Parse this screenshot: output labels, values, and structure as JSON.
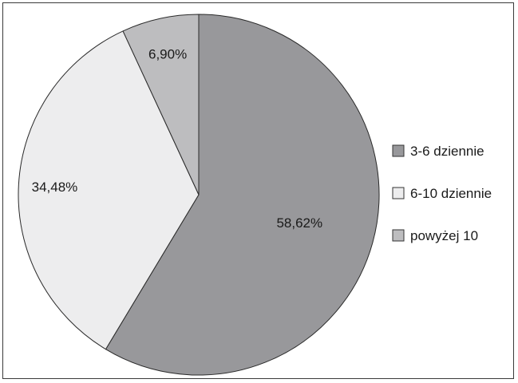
{
  "chart_data": {
    "type": "pie",
    "categories": [
      "3-6 dziennie",
      "6-10 dziennie",
      "powyżej 10"
    ],
    "values": [
      58.62,
      34.48,
      6.9
    ],
    "labels": [
      "58,62%",
      "34,48%",
      "6,90%"
    ],
    "colors": [
      "#98989b",
      "#ededee",
      "#bdbdbf"
    ],
    "start_angle": "12 o'clock",
    "direction": "clockwise",
    "legend_position": "right"
  }
}
